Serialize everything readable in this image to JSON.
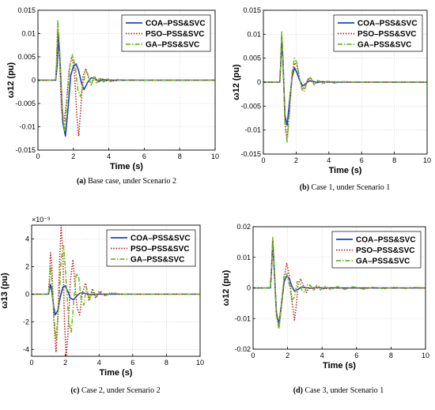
{
  "colors": {
    "COA": "#1f3fbf",
    "PSO": "#b8201a",
    "GA": "#6dbb1e",
    "grid": "#c8c8c8",
    "axis": "#000000"
  },
  "series_styles": [
    {
      "name": "COA–PSS&SVC",
      "color": "#1f3fbf",
      "dash": "solid"
    },
    {
      "name": "PSO–PSS&SVC",
      "color": "#b8201a",
      "dash": "dotted"
    },
    {
      "name": "GA–PSS&SVC",
      "color": "#6dbb1e",
      "dash": "dashdot"
    }
  ],
  "chart_data": [
    {
      "type": "line",
      "caption_letter": "(a)",
      "caption_text": " Base case, under Scenario 2",
      "xlabel": "Time (s)",
      "ylabel": "ω12 (pu)",
      "xlim": [
        0,
        10
      ],
      "ylim": [
        -0.015,
        0.015
      ],
      "xticks": [
        0,
        2,
        4,
        6,
        8,
        10
      ],
      "yticks": [
        -0.015,
        -0.01,
        -0.005,
        0,
        0.005,
        0.01,
        0.015
      ],
      "ytick_labels": [
        "-0.015",
        "-0.01",
        "-0.005",
        "0",
        "0.005",
        "0.01",
        "0.015"
      ],
      "multiplier": "",
      "grid": true,
      "legend": "top-right",
      "series": [
        {
          "name": "COA–PSS&SVC",
          "x": [
            0,
            1,
            1.08,
            1.15,
            1.25,
            1.4,
            1.55,
            1.7,
            1.85,
            2.0,
            2.15,
            2.3,
            2.45,
            2.6,
            2.8,
            3.0,
            3.2,
            3.4,
            3.7,
            4.0,
            5,
            6,
            7,
            8,
            9,
            10
          ],
          "y": [
            0,
            0,
            0.003,
            0.0095,
            0.004,
            -0.009,
            -0.012,
            -0.006,
            0.001,
            0.003,
            0.0035,
            0.002,
            -0.0005,
            -0.002,
            -0.0005,
            0.0005,
            0.0004,
            -0.0002,
            0.0001,
            0,
            0,
            0,
            0,
            0,
            0,
            0
          ]
        },
        {
          "name": "PSO–PSS&SVC",
          "x": [
            0,
            1,
            1.05,
            1.12,
            1.2,
            1.32,
            1.45,
            1.6,
            1.75,
            1.9,
            2.05,
            2.2,
            2.3,
            2.4,
            2.55,
            2.7,
            2.85,
            3.0,
            3.2,
            3.4,
            3.6,
            3.8,
            4.0,
            4.3,
            4.6,
            5,
            6,
            7,
            8,
            9,
            10
          ],
          "y": [
            0,
            0,
            0.004,
            0.012,
            0.006,
            -0.006,
            -0.0095,
            -0.005,
            0.002,
            0.005,
            0.0025,
            -0.008,
            -0.012,
            -0.007,
            0.001,
            0.0025,
            0.0005,
            -0.001,
            0.0008,
            -0.0006,
            0.0004,
            -0.0003,
            0.0002,
            -0.0002,
            0.0001,
            0,
            0,
            0,
            0,
            0,
            0
          ]
        },
        {
          "name": "GA–PSS&SVC",
          "x": [
            0,
            1,
            1.05,
            1.12,
            1.22,
            1.35,
            1.5,
            1.65,
            1.8,
            1.95,
            2.1,
            2.25,
            2.4,
            2.55,
            2.7,
            2.85,
            3.0,
            3.15,
            3.3,
            3.5,
            3.7,
            3.9,
            4.1,
            4.4,
            4.8,
            5.2,
            6,
            7,
            8,
            9,
            10
          ],
          "y": [
            0,
            0,
            0.004,
            0.013,
            0.007,
            -0.005,
            -0.011,
            -0.004,
            0.003,
            0.0055,
            0.003,
            -0.002,
            -0.0035,
            -0.001,
            0.002,
            0.0012,
            -0.0012,
            0.0009,
            -0.0007,
            0.0006,
            -0.0004,
            0.0003,
            -0.0003,
            0.0002,
            -0.0001,
            0.0001,
            0,
            0,
            0,
            0,
            0
          ]
        }
      ]
    },
    {
      "type": "line",
      "caption_letter": "(b)",
      "caption_text": " Case 1, under Scenario 1",
      "xlabel": "Time (s)",
      "ylabel": "ω12 (pu)",
      "xlim": [
        0,
        10
      ],
      "ylim": [
        -0.015,
        0.015
      ],
      "xticks": [
        0,
        2,
        4,
        6,
        8,
        10
      ],
      "yticks": [
        -0.015,
        -0.01,
        -0.005,
        0,
        0.005,
        0.01,
        0.015
      ],
      "ytick_labels": [
        "-0.015",
        "-0.01",
        "-0.005",
        "0",
        "0.005",
        "0.01",
        "0.015"
      ],
      "multiplier": "",
      "grid": true,
      "legend": "top-right",
      "series": [
        {
          "name": "COA–PSS&SVC",
          "x": [
            0,
            1,
            1.05,
            1.12,
            1.2,
            1.32,
            1.45,
            1.6,
            1.75,
            1.9,
            2.05,
            2.2,
            2.4,
            2.6,
            2.8,
            3.0,
            3.3,
            3.6,
            4.0,
            5,
            6,
            7,
            8,
            9,
            10
          ],
          "y": [
            0,
            0,
            0.003,
            0.0095,
            0.004,
            -0.007,
            -0.009,
            -0.004,
            0.001,
            0.003,
            0.002,
            0.0005,
            -0.0008,
            -0.0003,
            0.0003,
            0.0002,
            -0.0001,
            0.0001,
            0,
            0,
            0,
            0,
            0,
            0,
            0
          ]
        },
        {
          "name": "PSO–PSS&SVC",
          "x": [
            0,
            1,
            1.05,
            1.12,
            1.2,
            1.32,
            1.45,
            1.6,
            1.75,
            1.9,
            2.05,
            2.2,
            2.35,
            2.5,
            2.7,
            2.9,
            3.1,
            3.4,
            3.7,
            4.0,
            4.4,
            5,
            6,
            7,
            8,
            9,
            10
          ],
          "y": [
            0,
            0,
            0.003,
            0.01,
            0.005,
            -0.008,
            -0.012,
            -0.006,
            0.001,
            0.004,
            0.0035,
            0.001,
            -0.001,
            -0.0015,
            0.0005,
            0.0008,
            -0.0004,
            0.0003,
            -0.0002,
            0.0001,
            0,
            0,
            0,
            0,
            0,
            0,
            0
          ]
        },
        {
          "name": "GA–PSS&SVC",
          "x": [
            0,
            1,
            1.05,
            1.12,
            1.2,
            1.32,
            1.45,
            1.6,
            1.75,
            1.9,
            2.05,
            2.2,
            2.35,
            2.5,
            2.7,
            2.9,
            3.1,
            3.3,
            3.6,
            3.9,
            4.3,
            4.8,
            5.5,
            6,
            7,
            8,
            9,
            10
          ],
          "y": [
            0,
            0,
            0.003,
            0.0105,
            0.005,
            -0.009,
            -0.0125,
            -0.006,
            0.002,
            0.005,
            0.004,
            0.001,
            -0.0015,
            -0.002,
            0.0006,
            0.001,
            -0.0006,
            0.0004,
            -0.0003,
            0.0002,
            -0.0002,
            0.0001,
            0,
            0,
            0,
            0,
            0,
            0
          ]
        }
      ]
    },
    {
      "type": "line",
      "caption_letter": "(c)",
      "caption_text": " Case 2, under Scenario 2",
      "xlabel": "Time (s)",
      "ylabel": "ω13 (pu)",
      "xlim": [
        0,
        10
      ],
      "ylim": [
        -0.0045,
        0.005
      ],
      "xticks": [
        0,
        2,
        4,
        6,
        8,
        10
      ],
      "yticks": [
        -0.004,
        -0.002,
        0,
        0.002,
        0.004
      ],
      "ytick_labels": [
        "-4",
        "-2",
        "0",
        "2",
        "4"
      ],
      "multiplier": "×10⁻³",
      "grid": true,
      "legend": "top-right",
      "series": [
        {
          "name": "COA–PSS&SVC",
          "x": [
            0,
            1,
            1.05,
            1.12,
            1.2,
            1.3,
            1.4,
            1.55,
            1.7,
            1.85,
            2.0,
            2.15,
            2.3,
            2.5,
            2.7,
            2.9,
            3.2,
            3.5,
            4.0,
            5,
            6,
            7,
            8,
            9,
            10
          ],
          "y": [
            0,
            0,
            0.0003,
            0.0007,
            0.0002,
            -0.0008,
            -0.0015,
            -0.0012,
            -0.0002,
            0.0005,
            0.0006,
            0.0002,
            -0.0003,
            -0.0004,
            -0.0001,
            0.0001,
            5e-05,
            -3e-05,
            0,
            0,
            0,
            0,
            0,
            0,
            0
          ]
        },
        {
          "name": "PSO–PSS&SVC",
          "x": [
            0,
            1,
            1.05,
            1.12,
            1.2,
            1.32,
            1.45,
            1.55,
            1.65,
            1.75,
            1.85,
            1.95,
            2.05,
            2.15,
            2.3,
            2.45,
            2.55,
            2.7,
            2.85,
            3.0,
            3.2,
            3.4,
            3.6,
            3.8,
            4.0,
            4.3,
            4.7,
            5.2,
            6,
            7,
            8,
            9,
            10
          ],
          "y": [
            0,
            0,
            0.001,
            0.003,
            0.002,
            -0.002,
            -0.0042,
            -0.002,
            0.002,
            0.005,
            0.003,
            -0.002,
            -0.0045,
            -0.003,
            0.001,
            0.0025,
            0.001,
            -0.001,
            -0.0015,
            0,
            0.0008,
            -0.0005,
            0.0004,
            -0.0003,
            0.0002,
            -0.0001,
            0.0001,
            0,
            0,
            0,
            0,
            0,
            0
          ]
        },
        {
          "name": "GA–PSS&SVC",
          "x": [
            0,
            1,
            1.05,
            1.12,
            1.2,
            1.32,
            1.45,
            1.6,
            1.75,
            1.9,
            2.05,
            2.2,
            2.35,
            2.5,
            2.65,
            2.8,
            2.95,
            3.1,
            3.25,
            3.45,
            3.65,
            3.85,
            4.1,
            4.4,
            4.8,
            5.3,
            6,
            7,
            8,
            9,
            10
          ],
          "y": [
            0,
            0,
            0.0007,
            0.002,
            0.001,
            -0.0015,
            -0.0033,
            -0.001,
            0.0025,
            0.0035,
            0.001,
            -0.002,
            -0.0028,
            -0.0005,
            0.0015,
            0.0012,
            -0.0005,
            -0.0008,
            0.0005,
            -0.0004,
            0.0003,
            -0.0002,
            0.0002,
            -0.0001,
            0.0001,
            0,
            0,
            0,
            0,
            0,
            0
          ]
        }
      ]
    },
    {
      "type": "line",
      "caption_letter": "(d)",
      "caption_text": " Case 3, under Scenario 1",
      "xlabel": "Time (s)",
      "ylabel": "ω12 (pu)",
      "xlim": [
        0,
        10
      ],
      "ylim": [
        -0.02,
        0.02
      ],
      "xticks": [
        0,
        2,
        4,
        6,
        8,
        10
      ],
      "yticks": [
        -0.02,
        -0.01,
        0,
        0.01,
        0.02
      ],
      "ytick_labels": [
        "-0.02",
        "-0.01",
        "0",
        "0.01",
        "0.02"
      ],
      "multiplier": "",
      "grid": true,
      "legend": "top-right",
      "series": [
        {
          "name": "COA–PSS&SVC",
          "x": [
            0,
            1,
            1.06,
            1.14,
            1.22,
            1.35,
            1.5,
            1.65,
            1.8,
            1.95,
            2.1,
            2.25,
            2.4,
            2.6,
            2.8,
            3.0,
            3.3,
            3.6,
            4.0,
            5,
            6,
            7,
            8,
            9,
            10
          ],
          "y": [
            0,
            0,
            0.005,
            0.0155,
            0.007,
            -0.008,
            -0.012,
            -0.005,
            0.002,
            0.004,
            0.003,
            0.0005,
            -0.001,
            -0.0005,
            0.0003,
            0.0002,
            -0.0001,
            0.0001,
            0,
            0,
            0,
            0,
            0,
            0,
            0
          ]
        },
        {
          "name": "PSO–PSS&SVC",
          "x": [
            0,
            1,
            1.06,
            1.14,
            1.22,
            1.35,
            1.5,
            1.65,
            1.8,
            1.95,
            2.1,
            2.25,
            2.4,
            2.5,
            2.6,
            2.75,
            2.9,
            3.1,
            3.3,
            3.5,
            3.8,
            4.1,
            4.5,
            5,
            6,
            7,
            8,
            9,
            10
          ],
          "y": [
            0,
            0,
            0.005,
            0.016,
            0.007,
            -0.008,
            -0.013,
            -0.006,
            0.003,
            0.008,
            0.004,
            -0.004,
            -0.0105,
            -0.006,
            0.001,
            0.003,
            0.001,
            -0.0015,
            0.001,
            -0.0006,
            0.0004,
            -0.0003,
            0.0001,
            0,
            0,
            0,
            0,
            0,
            0
          ]
        },
        {
          "name": "GA–PSS&SVC",
          "x": [
            0,
            1,
            1.06,
            1.14,
            1.22,
            1.35,
            1.5,
            1.65,
            1.8,
            1.95,
            2.1,
            2.25,
            2.4,
            2.55,
            2.7,
            2.85,
            3.0,
            3.15,
            3.3,
            3.5,
            3.7,
            3.9,
            4.2,
            4.5,
            4.9,
            5.3,
            5.8,
            6.4,
            7.0,
            7.6,
            8.2,
            8.8,
            9.4,
            10
          ],
          "y": [
            0,
            0,
            0.005,
            0.0165,
            0.008,
            -0.009,
            -0.0135,
            -0.005,
            0.004,
            0.005,
            0.001,
            -0.004,
            -0.003,
            0.002,
            0.002,
            -0.001,
            -0.0015,
            0.001,
            0.001,
            -0.0008,
            0.0009,
            -0.0007,
            0.0006,
            -0.0006,
            0.0005,
            -0.0005,
            0.0004,
            -0.0004,
            0.0003,
            -0.0003,
            0.0003,
            -0.0002,
            0.0002,
            0
          ]
        }
      ]
    }
  ]
}
